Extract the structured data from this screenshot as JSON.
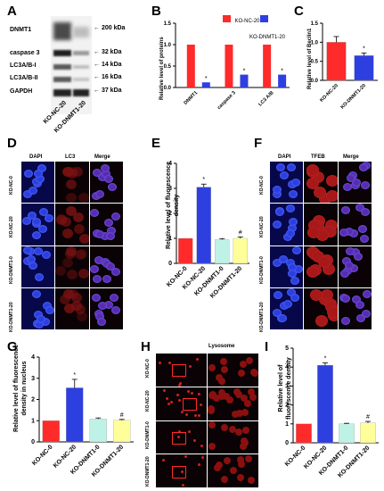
{
  "panels": {
    "A": {
      "label": "A",
      "rows": [
        "DNMT1",
        "caspase 3",
        "LC3A/B-I",
        "LC3A/B-II",
        "GAPDH"
      ],
      "kda": [
        "← 200 kDa",
        "← 32 kDa",
        "← 14 kDa",
        "← 16 kDa",
        "← 37 kDa"
      ],
      "lanes": [
        "KO-NC-20",
        "KO-DNMT1-20"
      ]
    },
    "B": {
      "label": "B",
      "legend": [
        "KO-NC-20",
        "KO-DNMT1-20"
      ],
      "colors": [
        "#ff2a2a",
        "#2e3fe0"
      ],
      "sig": [
        "*",
        "*",
        "*"
      ]
    },
    "C": {
      "label": "C",
      "sig": "*"
    },
    "D": {
      "label": "D",
      "cols": [
        "DAPI",
        "LC3",
        "Merge"
      ],
      "rows": [
        "KO-NC-0",
        "KO-NC-20",
        "KO-DNMT1-0",
        "KO-DNMT1-20"
      ]
    },
    "E": {
      "label": "E",
      "sig": [
        "*",
        "#"
      ]
    },
    "F": {
      "label": "F",
      "cols": [
        "DAPI",
        "TFEB",
        "Merge"
      ],
      "rows": [
        "KO-NC-0",
        "KO-NC-20",
        "KO-DNMT1-0",
        "KO-DNMT1-20"
      ]
    },
    "G": {
      "label": "G",
      "sig": [
        "*",
        "#"
      ]
    },
    "H": {
      "label": "H",
      "title": "Lysosome",
      "rows": [
        "KO-NC-0",
        "KO-NC-20",
        "KO-DNMT1-0",
        "KO-DNMT1-20"
      ]
    },
    "I": {
      "label": "I",
      "sig": [
        "*",
        "#"
      ]
    }
  },
  "chart_data": [
    {
      "id": "B",
      "type": "bar",
      "categories": [
        "DNMT1",
        "caspase 3",
        "LC3 A/B"
      ],
      "ylabel": "Relative level of proteins",
      "ylim": [
        0,
        1.5
      ],
      "yticks": [
        "0.0",
        "0.5",
        "1.0",
        "1.5"
      ],
      "series": [
        {
          "name": "KO-NC-20",
          "values": [
            1.0,
            1.0,
            1.0
          ]
        },
        {
          "name": "KO-DNMT1-20",
          "values": [
            0.12,
            0.3,
            0.3
          ]
        }
      ]
    },
    {
      "id": "C",
      "type": "bar",
      "categories": [
        "KO-NC-20",
        "KO-DNMT1-20"
      ],
      "ylabel": "Relative level of Beclin1",
      "ylim": [
        0,
        1.5
      ],
      "yticks": [
        "0.0",
        "0.5",
        "1.0",
        "1.5"
      ],
      "values": [
        1.0,
        0.65
      ],
      "errors": [
        0.15,
        0.07
      ],
      "colors": [
        "#ff2a2a",
        "#2e3fe0"
      ]
    },
    {
      "id": "E",
      "type": "bar",
      "categories": [
        "KO-NC-0",
        "KO-NC-20",
        "KO-DNMT1-0",
        "KO-DNMT1-20"
      ],
      "ylabel": "Relative level of fluorescence density",
      "ylim": [
        0,
        4
      ],
      "yticks": [
        "0",
        "1",
        "2",
        "3",
        "4"
      ],
      "values": [
        1.0,
        3.05,
        0.95,
        1.0
      ],
      "errors": [
        0,
        0.12,
        0.04,
        0.06
      ],
      "colors": [
        "#ff2a2a",
        "#2e3fe0",
        "#bff2e6",
        "#ffff99"
      ]
    },
    {
      "id": "G",
      "type": "bar",
      "categories": [
        "KO-NC-0",
        "KO-NC-20",
        "KO-DNMT1-0",
        "KO-DNMT1-20"
      ],
      "ylabel": "Relative level of fluorescence density in nucleus",
      "ylim": [
        0,
        4
      ],
      "yticks": [
        "0",
        "1",
        "2",
        "3",
        "4"
      ],
      "values": [
        1.0,
        2.55,
        1.08,
        1.02
      ],
      "errors": [
        0,
        0.4,
        0.05,
        0.04
      ],
      "colors": [
        "#ff2a2a",
        "#2e3fe0",
        "#bff2e6",
        "#ffff99"
      ]
    },
    {
      "id": "I",
      "type": "bar",
      "categories": [
        "KO-NC-0",
        "KO-NC-20",
        "KO-DNMT1-0",
        "KO-DNMT1-20"
      ],
      "ylabel": "Relative level of fluorescence density",
      "ylim": [
        0,
        5
      ],
      "yticks": [
        "0",
        "1",
        "2",
        "3",
        "4",
        "5"
      ],
      "values": [
        1.0,
        4.1,
        1.0,
        1.05
      ],
      "errors": [
        0,
        0.12,
        0.03,
        0.08
      ],
      "colors": [
        "#ff2a2a",
        "#2e3fe0",
        "#bff2e6",
        "#ffff99"
      ]
    }
  ]
}
